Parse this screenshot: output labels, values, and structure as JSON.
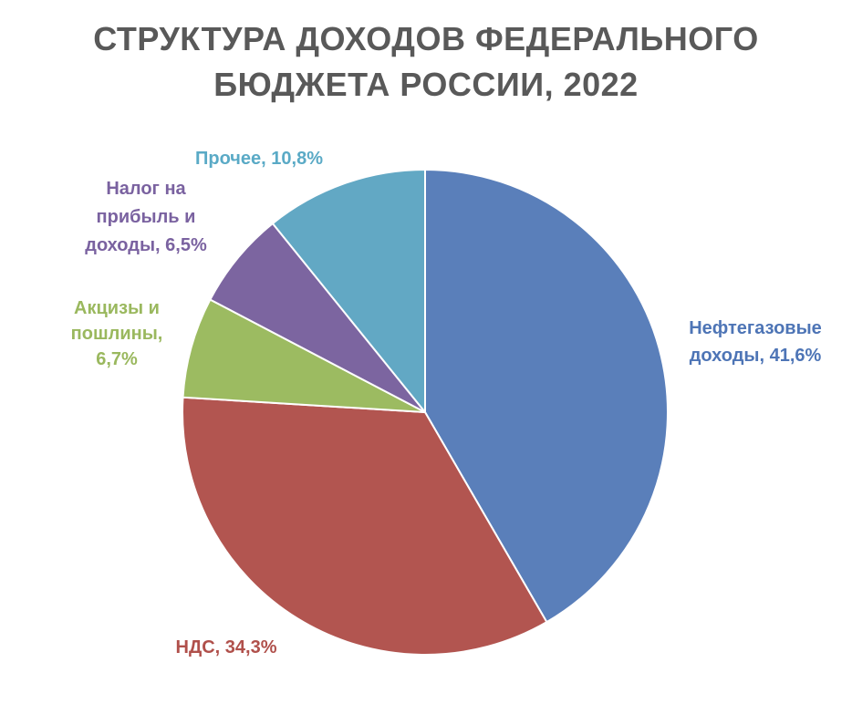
{
  "chart_data": {
    "type": "pie",
    "title_lines": [
      "СТРУКТУРА ДОХОДОВ ФЕДЕРАЛЬНОГО",
      "БЮДЖЕТА РОССИИ, 2022"
    ],
    "slices": [
      {
        "label_lines": [
          "Нефтегазовые",
          "доходы, 41,6%"
        ],
        "value": 41.6,
        "color": "#5A7FBA",
        "label_color": "#4E75B6"
      },
      {
        "label_lines": [
          "НДС, 34,3%"
        ],
        "value": 34.3,
        "color": "#B25550",
        "label_color": "#B0504B"
      },
      {
        "label_lines": [
          "Акцизы и",
          "пошлины,",
          "6,7%"
        ],
        "value": 6.7,
        "color": "#9CBB61",
        "label_color": "#9AB85E"
      },
      {
        "label_lines": [
          "Налог на",
          "прибыль и",
          "доходы, 6,5%"
        ],
        "value": 6.5,
        "color": "#7C65A0",
        "label_color": "#7A62A0"
      },
      {
        "label_lines": [
          "Прочее, 10,8%"
        ],
        "value": 10.8,
        "color": "#62A8C4",
        "label_color": "#5AAAC6"
      }
    ],
    "start": "12 o'clock",
    "direction": "clockwise",
    "legend": "none"
  }
}
